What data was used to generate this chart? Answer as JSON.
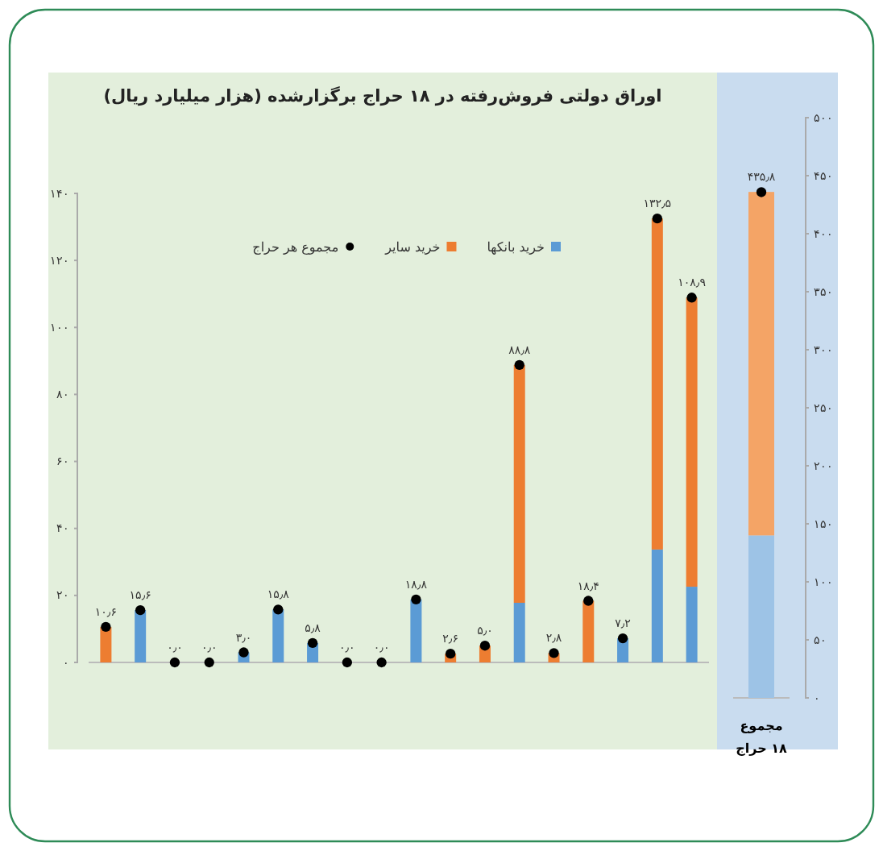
{
  "chart_data": [
    {
      "type": "bar",
      "stacked": true,
      "title": "اوراق دولتی فروش‌رفته در ۱۸ حراج برگزارشده (هزار میلیارد ریال)",
      "categories": [
        null,
        null,
        null,
        null,
        null,
        null,
        null,
        null,
        null,
        null,
        null,
        null,
        null,
        null,
        null,
        null,
        null,
        null
      ],
      "ylim": [
        0,
        140
      ],
      "yticks": [
        {
          "value": 0,
          "label": "۰"
        },
        {
          "value": 20,
          "label": "۲۰"
        },
        {
          "value": 40,
          "label": "۴۰"
        },
        {
          "value": 60,
          "label": "۶۰"
        },
        {
          "value": 80,
          "label": "۸۰"
        },
        {
          "value": 100,
          "label": "۱۰۰"
        },
        {
          "value": 120,
          "label": "۱۲۰"
        },
        {
          "value": 140,
          "label": "۱۴۰"
        }
      ],
      "legend": "top",
      "grid": false,
      "series": [
        {
          "name": "خرید بانکها",
          "color": "#5b9bd5",
          "values": [
            0,
            15.6,
            0,
            0,
            3.0,
            15.8,
            5.8,
            0,
            0,
            18.8,
            0,
            0,
            17.8,
            0,
            0,
            7.2,
            33.7,
            22.6
          ]
        },
        {
          "name": "خرید سایر",
          "color": "#ed7d31",
          "values": [
            10.6,
            0,
            0,
            0,
            0,
            0,
            0,
            0,
            0,
            0,
            2.6,
            5.0,
            71,
            2.8,
            18.4,
            0,
            98.8,
            86.3
          ]
        },
        {
          "name": "مجموع هر حراج",
          "type": "scatter",
          "marker": "circle",
          "color": "#000000",
          "values": [
            10.6,
            15.6,
            0,
            0,
            3.0,
            15.8,
            5.8,
            0,
            0,
            18.8,
            2.6,
            5.0,
            88.8,
            2.8,
            18.4,
            7.2,
            132.5,
            108.9
          ],
          "value_labels": [
            "۱۰٫۶",
            "۱۵٫۶",
            "۰٫۰",
            "۰٫۰",
            "۳٫۰",
            "۱۵٫۸",
            "۵٫۸",
            "۰٫۰",
            "۰٫۰",
            "۱۸٫۸",
            "۲٫۶",
            "۵٫۰",
            "۸۸٫۸",
            "۲٫۸",
            "۱۸٫۴",
            "۷٫۲",
            "۱۳۲٫۵",
            "۱۰۸٫۹"
          ]
        }
      ]
    },
    {
      "type": "bar",
      "stacked": true,
      "categories": [
        "مجموع ۱۸ حراج"
      ],
      "y2lim": [
        0,
        500
      ],
      "y2ticks": [
        {
          "value": 0,
          "label": "۰"
        },
        {
          "value": 50,
          "label": "۵۰"
        },
        {
          "value": 100,
          "label": "۱۰۰"
        },
        {
          "value": 150,
          "label": "۱۵۰"
        },
        {
          "value": 200,
          "label": "۲۰۰"
        },
        {
          "value": 250,
          "label": "۲۵۰"
        },
        {
          "value": 300,
          "label": "۳۰۰"
        },
        {
          "value": 350,
          "label": "۳۵۰"
        },
        {
          "value": 400,
          "label": "۴۰۰"
        },
        {
          "value": 450,
          "label": "۴۵۰"
        },
        {
          "value": 500,
          "label": "۵۰۰"
        }
      ],
      "series": [
        {
          "axis": "y2",
          "color": "#9dc3e6",
          "values": [
            140
          ]
        },
        {
          "axis": "y2",
          "color": "#f4a466",
          "values": [
            296
          ]
        },
        {
          "axis": "y2",
          "type": "scatter",
          "marker": "circle",
          "color": "#000000",
          "values": [
            435.8
          ],
          "value_labels": [
            "۴۳۵٫۸"
          ]
        }
      ]
    }
  ]
}
